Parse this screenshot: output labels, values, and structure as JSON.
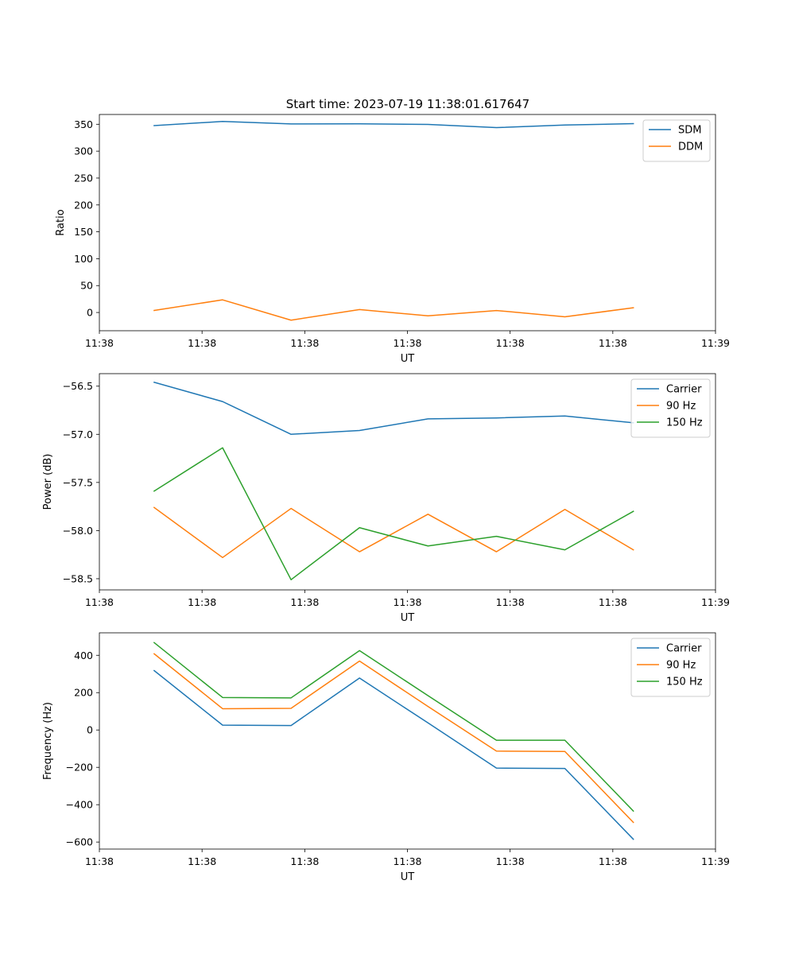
{
  "title": "Start time: 2023-07-19 11:38:01.617647",
  "colors": {
    "blue": "#1f77b4",
    "orange": "#ff7f0e",
    "green": "#2ca02c"
  },
  "chart_data": [
    {
      "type": "line",
      "ylabel": "Ratio",
      "xlabel": "UT",
      "x": [
        1,
        2,
        3,
        4,
        5,
        6,
        7,
        8
      ],
      "xlim": [
        0.2,
        9.2
      ],
      "xticks": [
        0.2,
        1.7,
        3.2,
        4.7,
        6.2,
        7.7,
        9.2
      ],
      "xtick_labels": [
        "11:38",
        "11:38",
        "11:38",
        "11:38",
        "11:38",
        "11:38",
        "11:39"
      ],
      "ylim": [
        -33.9,
        368.2
      ],
      "yticks": [
        0,
        50,
        100,
        150,
        200,
        250,
        300,
        350
      ],
      "series": [
        {
          "name": "SDM",
          "color": "#1f77b4",
          "values": [
            347.5,
            355.2,
            350.7,
            350.8,
            349.7,
            343.8,
            348.6,
            351.2
          ]
        },
        {
          "name": "DDM",
          "color": "#ff7f0e",
          "values": [
            3.8,
            23.5,
            -14.3,
            5.5,
            -6.2,
            3.7,
            -8.0,
            8.8
          ]
        }
      ],
      "legend": "upper right"
    },
    {
      "type": "line",
      "ylabel": "Power (dB)",
      "xlabel": "UT",
      "x": [
        1,
        2,
        3,
        4,
        5,
        6,
        7,
        8
      ],
      "xlim": [
        0.2,
        9.2
      ],
      "xticks": [
        0.2,
        1.7,
        3.2,
        4.7,
        6.2,
        7.7,
        9.2
      ],
      "xtick_labels": [
        "11:38",
        "11:38",
        "11:38",
        "11:38",
        "11:38",
        "11:38",
        "11:39"
      ],
      "ylim": [
        -58.616,
        -56.37
      ],
      "yticks": [
        -58.5,
        -58.0,
        -57.5,
        -57.0,
        -56.5
      ],
      "ytick_labels": [
        "−58.5",
        "−58.0",
        "−57.5",
        "−57.0",
        "−56.5"
      ],
      "series": [
        {
          "name": "Carrier",
          "color": "#1f77b4",
          "values": [
            -56.46,
            -56.66,
            -57.0,
            -56.96,
            -56.84,
            -56.83,
            -56.81,
            -56.88
          ]
        },
        {
          "name": "90 Hz",
          "color": "#ff7f0e",
          "values": [
            -57.76,
            -58.28,
            -57.77,
            -58.22,
            -57.83,
            -58.22,
            -57.78,
            -58.2
          ]
        },
        {
          "name": "150 Hz",
          "color": "#2ca02c",
          "values": [
            -57.59,
            -57.14,
            -58.51,
            -57.97,
            -58.16,
            -58.06,
            -58.2,
            -57.8
          ]
        }
      ],
      "legend": "upper right"
    },
    {
      "type": "line",
      "ylabel": "Frequency (Hz)",
      "xlabel": "UT",
      "x": [
        1,
        2,
        3,
        4,
        5,
        6,
        7,
        8
      ],
      "xlim": [
        0.2,
        9.2
      ],
      "xticks": [
        0.2,
        1.7,
        3.2,
        4.7,
        6.2,
        7.7,
        9.2
      ],
      "xtick_labels": [
        "11:38",
        "11:38",
        "11:38",
        "11:38",
        "11:38",
        "11:38",
        "11:39"
      ],
      "ylim": [
        -637.6,
        520.3
      ],
      "yticks": [
        -600,
        -400,
        -200,
        0,
        200,
        400
      ],
      "ytick_labels": [
        "−600",
        "−400",
        "−200",
        "0",
        "200",
        "400"
      ],
      "series": [
        {
          "name": "Carrier",
          "color": "#1f77b4",
          "values": [
            318,
            26,
            24,
            278,
            38,
            -204,
            -206,
            -585
          ]
        },
        {
          "name": "90 Hz",
          "color": "#ff7f0e",
          "values": [
            408,
            114,
            116,
            369,
            126,
            -113,
            -115,
            -495
          ]
        },
        {
          "name": "150 Hz",
          "color": "#2ca02c",
          "values": [
            468,
            174,
            172,
            425,
            184,
            -55,
            -55,
            -434
          ]
        }
      ],
      "legend": "upper right"
    }
  ]
}
